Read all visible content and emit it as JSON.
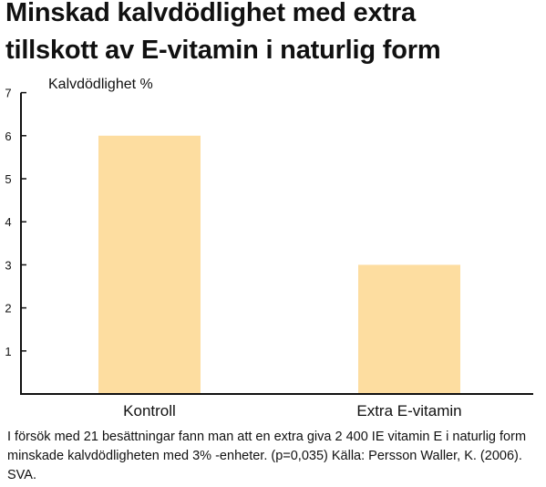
{
  "title_lines": [
    "Minskad kalvdödlighet med extra",
    "tillskott av E-vitamin i naturlig form"
  ],
  "caption": "I försök med 21 besättningar fann man att en extra giva 2 400 IE vitamin E i naturlig form minskade kalvdödligheten med 3% -enheter. (p=0,035) Källa: Persson Waller, K. (2006). SVA.",
  "colors": {
    "bar": "#fddda0",
    "axis": "#111111"
  },
  "chart_data": {
    "type": "bar",
    "title": "Minskad kalvdödlighet med extra tillskott av E-vitamin i naturlig form",
    "ylabel": "Kalvdödlighet %",
    "xlabel": "",
    "categories": [
      "Kontroll",
      "Extra E-vitamin"
    ],
    "values": [
      6,
      3
    ],
    "ylim": [
      0,
      7
    ],
    "yticks": [
      1,
      2,
      3,
      4,
      5,
      6,
      7
    ],
    "grid": false,
    "legend": "none"
  }
}
